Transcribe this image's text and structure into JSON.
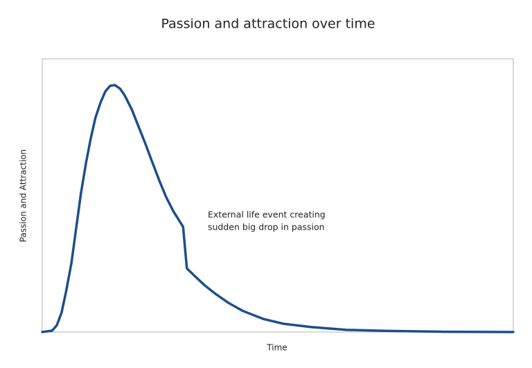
{
  "chart_data": {
    "type": "line",
    "title": "Passion and attraction over time",
    "xlabel": "Time",
    "ylabel": "Passion and Attraction",
    "annotation": [
      "External life event creating",
      "sudden big drop in passion"
    ],
    "x": [
      0,
      2.1,
      3.1,
      4.1,
      5.1,
      6.2,
      7.2,
      8.2,
      9.3,
      10.3,
      11.3,
      12.4,
      13.4,
      14.4,
      15.4,
      16.5,
      17.5,
      19,
      20.4,
      21.9,
      23.4,
      24.9,
      26.3,
      27.8,
      29,
      29.9,
      30.7,
      32.2,
      34.4,
      36.6,
      39.6,
      42.5,
      46.9,
      51.3,
      57.2,
      64.6,
      73.4,
      85.1,
      100
    ],
    "series": [
      {
        "name": "Passion",
        "color": "#1b4f8c",
        "values": [
          0,
          0.5,
          2.5,
          7.1,
          15.2,
          25.3,
          38,
          50.6,
          62,
          70.9,
          78.5,
          84.1,
          88.1,
          90.1,
          90.4,
          89.1,
          86.6,
          81.5,
          75.4,
          68.9,
          62,
          55.2,
          49.4,
          44.3,
          41,
          38.5,
          23.3,
          20.8,
          17.2,
          14.2,
          10.6,
          7.8,
          4.8,
          3,
          1.8,
          0.8,
          0.4,
          0.1,
          0
        ]
      }
    ],
    "xlim": [
      0,
      100
    ],
    "ylim": [
      0,
      100
    ]
  }
}
